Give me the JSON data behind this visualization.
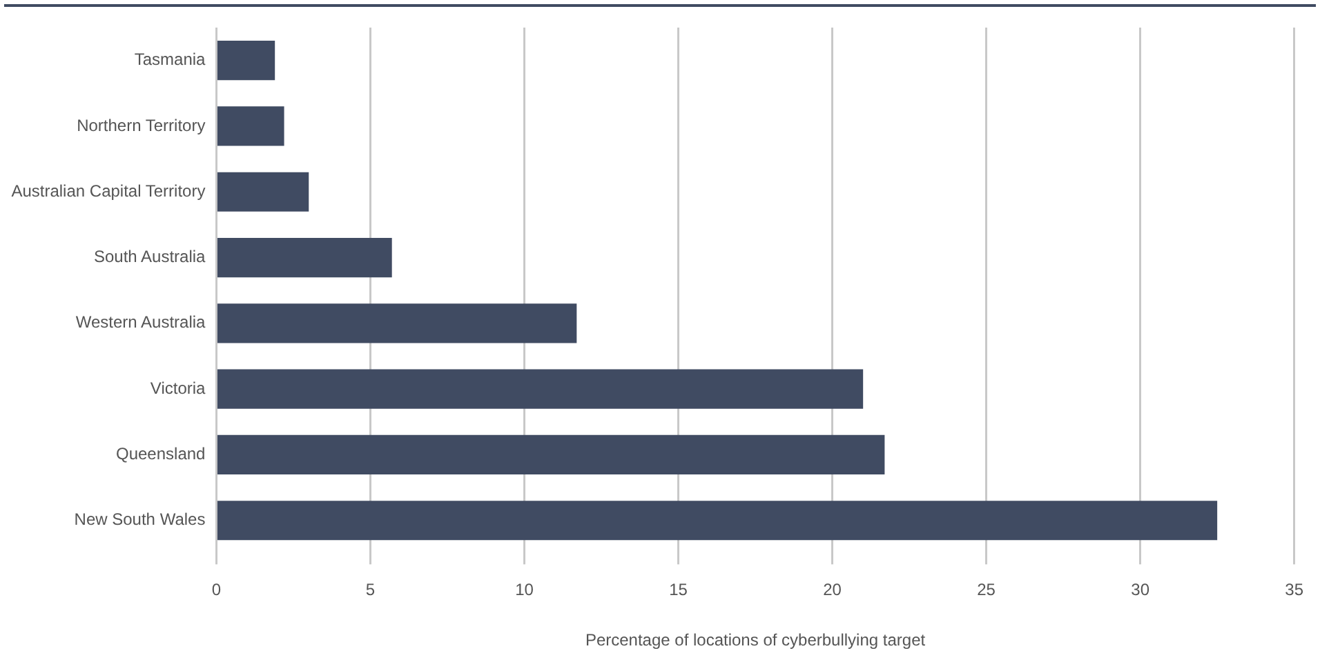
{
  "chart_data": {
    "type": "bar",
    "orientation": "horizontal",
    "xlabel": "Percentage of locations of cyberbullying target",
    "categories": [
      "Tasmania",
      "Northern Territory",
      "Australian Capital Territory",
      "South Australia",
      "Western Australia",
      "Victoria",
      "Queensland",
      "New South Wales"
    ],
    "values": [
      1.9,
      2.2,
      3.0,
      5.7,
      11.7,
      21.0,
      21.7,
      32.5
    ],
    "color": "#404b62",
    "xlim": [
      0,
      35
    ],
    "xticks": [
      0,
      5,
      10,
      15,
      20,
      25,
      30,
      35
    ],
    "grid": "x",
    "legend": false
  }
}
